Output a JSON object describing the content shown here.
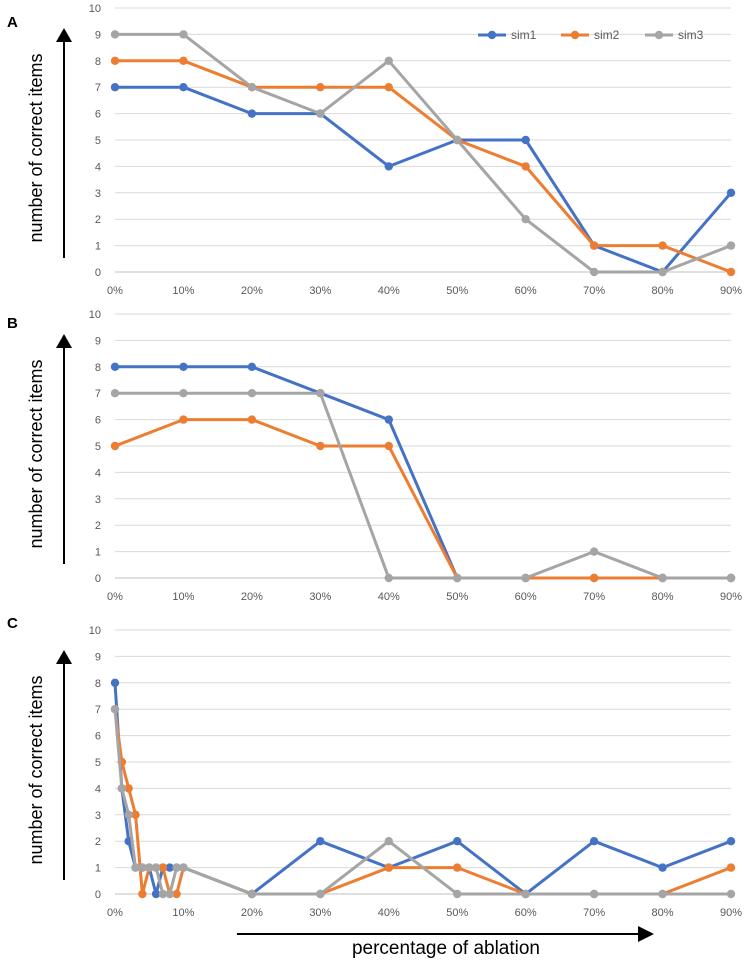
{
  "chart_data": [
    {
      "type": "line",
      "panel": "A",
      "ylabel": "number of correct items",
      "ylim": [
        0,
        10
      ],
      "yticks": [
        "0",
        "1",
        "2",
        "3",
        "4",
        "5",
        "6",
        "7",
        "8",
        "9",
        "10"
      ],
      "x": [
        0,
        10,
        20,
        30,
        40,
        50,
        60,
        70,
        80,
        90
      ],
      "xticks": [
        {
          "v": 0,
          "label": "0%"
        },
        {
          "v": 10,
          "label": "10%"
        },
        {
          "v": 20,
          "label": "20%"
        },
        {
          "v": 30,
          "label": "30%"
        },
        {
          "v": 40,
          "label": "40%"
        },
        {
          "v": 50,
          "label": "50%"
        },
        {
          "v": 60,
          "label": "60%"
        },
        {
          "v": 70,
          "label": "70%"
        },
        {
          "v": 80,
          "label": "80%"
        },
        {
          "v": 90,
          "label": "90%"
        }
      ],
      "grid": true,
      "legend": [
        "sim1",
        "sim2",
        "sim3"
      ],
      "series": [
        {
          "name": "sim1",
          "color": "#4472C4",
          "x": [
            0,
            10,
            20,
            30,
            40,
            50,
            60,
            70,
            80,
            90
          ],
          "values": [
            7,
            7,
            6,
            6,
            4,
            5,
            5,
            1,
            0,
            3
          ]
        },
        {
          "name": "sim2",
          "color": "#ED7D31",
          "x": [
            0,
            10,
            20,
            30,
            40,
            50,
            60,
            70,
            80,
            90
          ],
          "values": [
            8,
            8,
            7,
            7,
            7,
            5,
            4,
            1,
            1,
            0
          ]
        },
        {
          "name": "sim3",
          "color": "#A5A5A5",
          "x": [
            0,
            10,
            20,
            30,
            40,
            50,
            60,
            70,
            80,
            90
          ],
          "values": [
            9,
            9,
            7,
            6,
            8,
            5,
            2,
            0,
            0,
            1
          ]
        }
      ]
    },
    {
      "type": "line",
      "panel": "B",
      "ylabel": "number of correct items",
      "ylim": [
        0,
        10
      ],
      "yticks": [
        "0",
        "1",
        "2",
        "3",
        "4",
        "5",
        "6",
        "7",
        "8",
        "9",
        "10"
      ],
      "x": [
        0,
        10,
        20,
        30,
        40,
        50,
        60,
        70,
        80,
        90
      ],
      "xticks": [
        {
          "v": 0,
          "label": "0%"
        },
        {
          "v": 10,
          "label": "10%"
        },
        {
          "v": 20,
          "label": "20%"
        },
        {
          "v": 30,
          "label": "30%"
        },
        {
          "v": 40,
          "label": "40%"
        },
        {
          "v": 50,
          "label": "50%"
        },
        {
          "v": 60,
          "label": "60%"
        },
        {
          "v": 70,
          "label": "70%"
        },
        {
          "v": 80,
          "label": "80%"
        },
        {
          "v": 90,
          "label": "90%"
        }
      ],
      "grid": true,
      "series": [
        {
          "name": "sim1",
          "color": "#4472C4",
          "x": [
            0,
            10,
            20,
            30,
            40,
            50,
            60,
            70,
            80,
            90
          ],
          "values": [
            8,
            8,
            8,
            7,
            6,
            0,
            0,
            0,
            0,
            0
          ]
        },
        {
          "name": "sim2",
          "color": "#ED7D31",
          "x": [
            0,
            10,
            20,
            30,
            40,
            50,
            60,
            70,
            80,
            90
          ],
          "values": [
            5,
            6,
            6,
            5,
            5,
            0,
            0,
            0,
            0,
            0
          ]
        },
        {
          "name": "sim3",
          "color": "#A5A5A5",
          "x": [
            0,
            10,
            20,
            30,
            40,
            50,
            60,
            70,
            80,
            90
          ],
          "values": [
            7,
            7,
            7,
            7,
            0,
            0,
            0,
            1,
            0,
            0
          ]
        }
      ]
    },
    {
      "type": "line",
      "panel": "C",
      "ylabel": "number of correct items",
      "xlabel": "percentage of ablation",
      "ylim": [
        0,
        10
      ],
      "yticks": [
        "0",
        "1",
        "2",
        "3",
        "4",
        "5",
        "6",
        "7",
        "8",
        "9",
        "10"
      ],
      "xticks": [
        {
          "v": 0,
          "label": "0%"
        },
        {
          "v": 10,
          "label": "10%"
        },
        {
          "v": 20,
          "label": "20%"
        },
        {
          "v": 30,
          "label": "30%"
        },
        {
          "v": 40,
          "label": "40%"
        },
        {
          "v": 50,
          "label": "50%"
        },
        {
          "v": 60,
          "label": "60%"
        },
        {
          "v": 70,
          "label": "70%"
        },
        {
          "v": 80,
          "label": "80%"
        },
        {
          "v": 90,
          "label": "90%"
        }
      ],
      "grid": true,
      "series": [
        {
          "name": "sim1",
          "color": "#4472C4",
          "x": [
            0,
            1,
            2,
            3,
            4,
            5,
            6,
            7,
            8,
            9,
            10,
            20,
            30,
            40,
            50,
            60,
            70,
            80,
            90
          ],
          "values": [
            8,
            4,
            2,
            1,
            1,
            1,
            0,
            1,
            1,
            1,
            1,
            0,
            2,
            1,
            2,
            0,
            2,
            1,
            2
          ]
        },
        {
          "name": "sim2",
          "color": "#ED7D31",
          "x": [
            0,
            1,
            2,
            3,
            4,
            5,
            6,
            7,
            8,
            9,
            10,
            20,
            30,
            40,
            50,
            60,
            70,
            80,
            90
          ],
          "values": [
            7,
            5,
            4,
            3,
            0,
            1,
            1,
            1,
            0,
            0,
            1,
            0,
            0,
            1,
            1,
            0,
            0,
            0,
            1
          ]
        },
        {
          "name": "sim3",
          "color": "#A5A5A5",
          "x": [
            0,
            1,
            2,
            3,
            4,
            5,
            6,
            7,
            8,
            9,
            10,
            20,
            30,
            40,
            50,
            60,
            70,
            80,
            90
          ],
          "values": [
            7,
            4,
            3,
            1,
            1,
            1,
            1,
            0,
            0,
            1,
            1,
            0,
            0,
            2,
            0,
            0,
            0,
            0,
            0
          ]
        }
      ]
    }
  ],
  "colors": {
    "grid": "#D9D9D9",
    "axis": "#BFBFBF",
    "tick_text": "#595959",
    "arrow": "#000000"
  }
}
